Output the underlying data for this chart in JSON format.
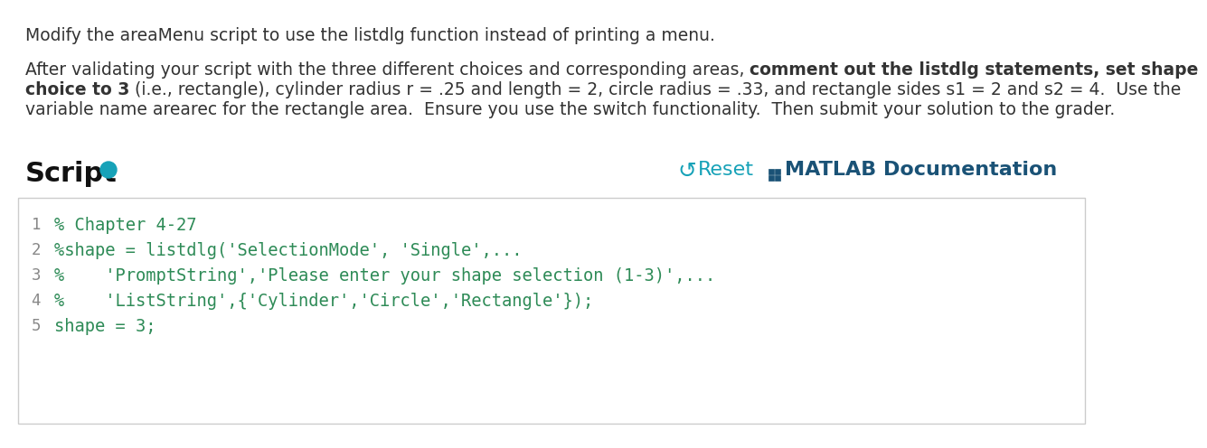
{
  "background_color": "#ffffff",
  "line1": "Modify the areaMenu script to use the listdlg function instead of printing a menu.",
  "para_line1_normal": "After validating your script with the three different choices and corresponding areas, ",
  "para_line1_bold": "comment out the listdlg statements, set shape",
  "para_line2_bold": "choice to 3",
  "para_line2_normal": " (i.e., rectangle), cylinder radius r = .25 and length = 2, circle radius = .33, and rectangle sides s1 = 2 and s2 = 4.  Use the",
  "para_line3": "variable name arearec for the rectangle area.  Ensure you use the switch functionality.  Then submit your solution to the grader.",
  "script_label": "Script",
  "reset_label": "Reset",
  "matlab_doc_label": "MATLAB Documentation",
  "code_lines": [
    {
      "num": "1",
      "text": "% Chapter 4-27",
      "bold": false
    },
    {
      "num": "2",
      "text": "%shape = listdlg('SelectionMode', 'Single',...",
      "bold": false
    },
    {
      "num": "3",
      "text": "%    'PromptString','Please enter your shape selection (1-3)',...",
      "bold": false
    },
    {
      "num": "4",
      "text": "%    'ListString',{'Cylinder','Circle','Rectangle'});",
      "bold": false
    },
    {
      "num": "5",
      "text": "shape = 3;",
      "bold": false
    }
  ],
  "code_color": "#2e8b57",
  "line_num_color": "#888888",
  "body_font_size": 13.5,
  "code_font_size": 13.5,
  "reset_color": "#17a2b8",
  "matlab_doc_color": "#1a5276",
  "script_icon_color": "#17a2b8"
}
